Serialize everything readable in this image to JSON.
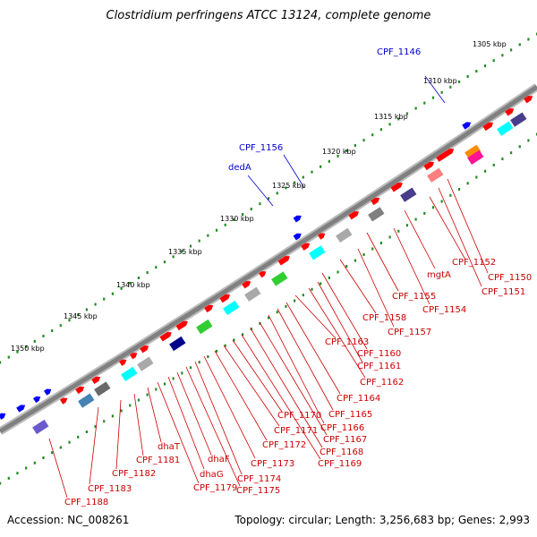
{
  "title": "Clostridium perfringens ATCC 13124, complete genome",
  "footer": {
    "accession": "Accession: NC_008261",
    "stats": "Topology: circular; Length: 3,256,683 bp; Genes: 2,993"
  },
  "colors": {
    "forward_gene": "#ff0000",
    "outer_gene": "#0000ff",
    "backbone": "#808080",
    "tick_dots": "#228b22",
    "label_red": "#cc0000",
    "label_blue": "#0000cc"
  },
  "ticks": [
    "1305 kbp",
    "1310 kbp",
    "1315 kbp",
    "1320 kbp",
    "1325 kbp",
    "1330 kbp",
    "1335 kbp",
    "1340 kbp",
    "1345 kbp",
    "1350 kbp"
  ],
  "labels_blue": [
    "CPF_1146",
    "CPF_1156",
    "dedA"
  ],
  "labels_red": [
    "CPF_1150",
    "CPF_1151",
    "CPF_1152",
    "mgtA",
    "CPF_1154",
    "CPF_1155",
    "CPF_1157",
    "CPF_1158",
    "CPF_1160",
    "CPF_1161",
    "CPF_1162",
    "CPF_1163",
    "CPF_1164",
    "CPF_1165",
    "CPF_1166",
    "CPF_1167",
    "CPF_1168",
    "CPF_1169",
    "CPF_1170",
    "CPF_1171",
    "CPF_1172",
    "CPF_1173",
    "CPF_1174",
    "CPF_1175",
    "dhaF",
    "dhaG",
    "CPF_1179",
    "dhaT",
    "CPF_1181",
    "CPF_1182",
    "CPF_1183",
    "CPF_1188"
  ]
}
